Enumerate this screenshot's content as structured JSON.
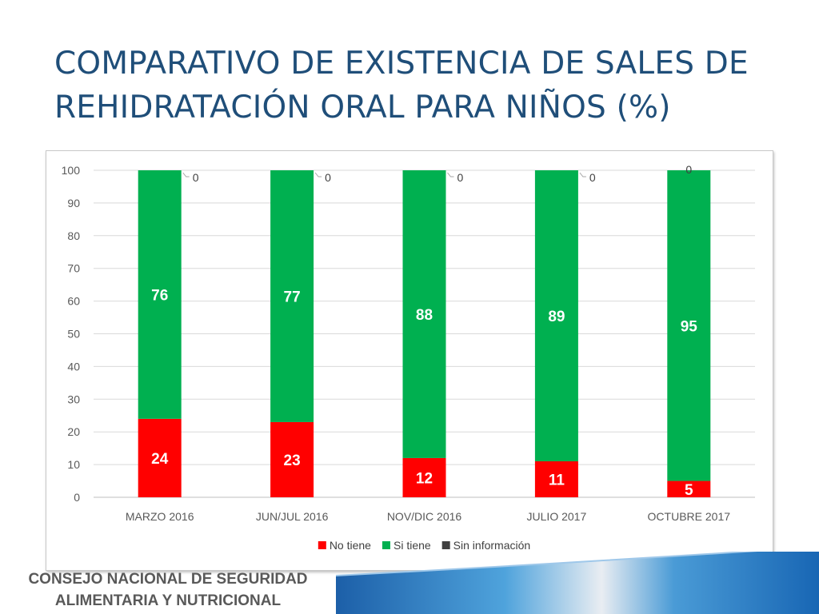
{
  "slide": {
    "title_line1": "COMPARATIVO DE EXISTENCIA DE SALES DE",
    "title_line2": "REHIDRATACIÓN ORAL PARA NIÑOS (%)",
    "footer_line1": "CONSEJO NACIONAL DE SEGURIDAD",
    "footer_line2": "ALIMENTARIA Y NUTRICIONAL"
  },
  "chart_data": {
    "type": "bar",
    "stacked": true,
    "categories": [
      "MARZO 2016",
      "JUN/JUL 2016",
      "NOV/DIC 2016",
      "JULIO 2017",
      "OCTUBRE 2017"
    ],
    "series": [
      {
        "name": "No tiene",
        "color": "#ff0000",
        "values": [
          24,
          23,
          12,
          11,
          5
        ]
      },
      {
        "name": "Si tiene",
        "color": "#00b050",
        "values": [
          76,
          77,
          88,
          89,
          95
        ]
      },
      {
        "name": "Sin información",
        "color": "#404040",
        "values": [
          0,
          0,
          0,
          0,
          0
        ]
      }
    ],
    "ylim": [
      0,
      100
    ],
    "yticks": [
      0,
      10,
      20,
      30,
      40,
      50,
      60,
      70,
      80,
      90,
      100
    ],
    "grid": true,
    "legend": "bottom",
    "data_labels": true
  }
}
